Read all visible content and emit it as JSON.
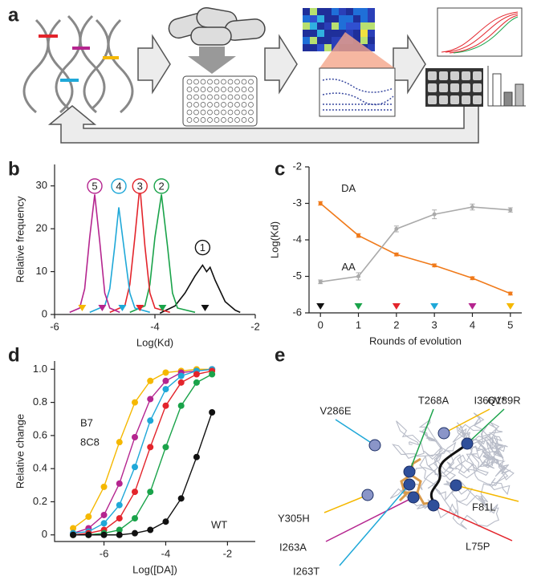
{
  "panel_letters": [
    "a",
    "b",
    "c",
    "d",
    "e"
  ],
  "chart_data": [
    {
      "type": "line",
      "x_label": "Log(Kd)",
      "y_label": "Relative frequency",
      "xlim": [
        -6,
        -2
      ],
      "xticks": [
        -6,
        -4,
        -2
      ],
      "ylim": [
        0,
        35
      ],
      "yticks": [
        0,
        10,
        20,
        30
      ],
      "series": [
        {
          "name": "1",
          "color": "#111111",
          "x": [
            -3.9,
            -3.6,
            -3.4,
            -3.2,
            -3.05,
            -2.97,
            -2.9,
            -2.8,
            -2.6,
            -2.4,
            -2.3
          ],
          "values": [
            0.3,
            2,
            5,
            9,
            11.5,
            10,
            11,
            8,
            3,
            1,
            0.5
          ]
        },
        {
          "name": "2",
          "color": "#1aa34a",
          "x": [
            -4.5,
            -4.2,
            -4.1,
            -4.0,
            -3.87,
            -3.75,
            -3.65,
            -3.55,
            -3.2
          ],
          "values": [
            0.5,
            2,
            7,
            18,
            28,
            16,
            5,
            1.5,
            0.5
          ]
        },
        {
          "name": "3",
          "color": "#e3242b",
          "x": [
            -4.9,
            -4.6,
            -4.5,
            -4.4,
            -4.3,
            -4.2,
            -4.1,
            -4.0,
            -3.7
          ],
          "values": [
            0.5,
            2,
            7,
            18,
            30,
            16,
            5,
            1.5,
            0.5
          ]
        },
        {
          "name": "4",
          "color": "#1fa8d8",
          "x": [
            -5.3,
            -5.0,
            -4.9,
            -4.8,
            -4.72,
            -4.6,
            -4.5,
            -4.4,
            -4.1
          ],
          "values": [
            0.5,
            2,
            6,
            16,
            25,
            14,
            5,
            1.5,
            0.5
          ]
        },
        {
          "name": "5",
          "color": "#b5258f",
          "x": [
            -5.7,
            -5.5,
            -5.4,
            -5.3,
            -5.2,
            -5.1,
            -5.0,
            -4.9,
            -4.7
          ],
          "values": [
            0.5,
            1.5,
            6,
            18,
            28,
            17,
            5,
            1.5,
            0.5
          ]
        }
      ],
      "markers": [
        {
          "x": -5.45,
          "color": "#f5b800"
        },
        {
          "x": -5.05,
          "color": "#b5258f"
        },
        {
          "x": -4.65,
          "color": "#1fa8d8"
        },
        {
          "x": -4.3,
          "color": "#e3242b"
        },
        {
          "x": -3.85,
          "color": "#1aa34a"
        },
        {
          "x": -3.0,
          "color": "#111111"
        }
      ]
    },
    {
      "type": "line",
      "x_label": "Rounds of evolution",
      "y_label": "Log(Kd)",
      "x": [
        0,
        1,
        2,
        3,
        4,
        5
      ],
      "xlim": [
        -0.3,
        5.3
      ],
      "xticks": [
        0,
        1,
        2,
        3,
        4,
        5
      ],
      "ylim": [
        -6,
        -2
      ],
      "yticks": [
        -6,
        -5,
        -4,
        -3,
        -2
      ],
      "series": [
        {
          "name": "DA",
          "color": "#f07a1a",
          "values": [
            -3.0,
            -3.88,
            -4.4,
            -4.7,
            -5.05,
            -5.47
          ],
          "errors": [
            0.05,
            0.05,
            0.04,
            0.04,
            0.04,
            0.04
          ]
        },
        {
          "name": "AA",
          "color": "#aaaaaa",
          "values": [
            -5.15,
            -5.0,
            -3.7,
            -3.3,
            -3.1,
            -3.18
          ],
          "errors": [
            0.05,
            0.1,
            0.08,
            0.12,
            0.08,
            0.06
          ]
        }
      ],
      "marker_colors": [
        "#111111",
        "#1aa34a",
        "#e3242b",
        "#1fa8d8",
        "#b5258f",
        "#f5b800"
      ]
    },
    {
      "type": "scatter",
      "x_label": "Log([DA])",
      "y_label": "Relative change",
      "x": [
        -7,
        -6.5,
        -6,
        -5.5,
        -5,
        -4.5,
        -4,
        -3.5,
        -3,
        -2.5
      ],
      "xlim": [
        -7.6,
        -1.1
      ],
      "xticks": [
        -6,
        -4,
        -2
      ],
      "ylim": [
        -0.04,
        1.05
      ],
      "yticks": [
        0,
        0.2,
        0.4,
        0.6,
        0.8,
        {
          "value": 1,
          "label": "1.0"
        }
      ],
      "series": [
        {
          "name": "B7",
          "color": "#f5b800",
          "values": [
            0.04,
            0.11,
            0.29,
            0.56,
            0.8,
            0.93,
            0.98,
            0.99,
            1.0,
            1.0
          ]
        },
        {
          "name": "8C8",
          "color": "#b5258f",
          "values": [
            0.01,
            0.04,
            0.12,
            0.31,
            0.59,
            0.82,
            0.93,
            0.98,
            0.99,
            1.0
          ]
        },
        {
          "color": "#1fa8d8",
          "values": [
            0.01,
            0.02,
            0.07,
            0.18,
            0.41,
            0.69,
            0.88,
            0.96,
            0.99,
            1.0
          ]
        },
        {
          "color": "#e3242b",
          "values": [
            0.0,
            0.01,
            0.03,
            0.1,
            0.26,
            0.53,
            0.78,
            0.92,
            0.97,
            0.99
          ]
        },
        {
          "color": "#1aa34a",
          "values": [
            0.0,
            0.0,
            0.01,
            0.03,
            0.1,
            0.26,
            0.53,
            0.78,
            0.92,
            0.97
          ]
        },
        {
          "name": "WT",
          "color": "#111111",
          "values": [
            0.0,
            0.0,
            0.0,
            0.0,
            0.01,
            0.03,
            0.08,
            0.22,
            0.47,
            0.74
          ]
        }
      ]
    }
  ],
  "structure": {
    "mutations": [
      {
        "label": "V286E",
        "color": "#1fa8d8"
      },
      {
        "label": "T268A",
        "color": "#1aa34a"
      },
      {
        "label": "I366V*",
        "color": "#f5b800"
      },
      {
        "label": "Q189R",
        "color": "#1aa34a"
      },
      {
        "label": "Y305H",
        "color": "#f5b800"
      },
      {
        "label": "F81L",
        "color": "#f5b800"
      },
      {
        "label": "I263A",
        "color": "#b5258f"
      },
      {
        "label": "I263T",
        "color": "#1fa8d8"
      },
      {
        "label": "L75P",
        "color": "#e3242b"
      }
    ]
  }
}
